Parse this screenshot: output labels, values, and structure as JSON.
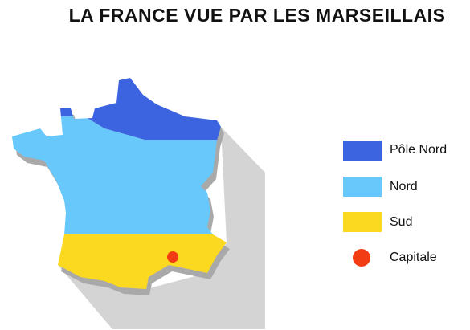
{
  "title": "LA FRANCE VUE PAR LES MARSEILLAIS",
  "legend": [
    {
      "label": "Pôle Nord",
      "color": "#3d64e0"
    },
    {
      "label": "Nord",
      "color": "#68c8fb"
    },
    {
      "label": "Sud",
      "color": "#fcd921"
    },
    {
      "label": "Capitale",
      "color": "#f13c14"
    }
  ]
}
